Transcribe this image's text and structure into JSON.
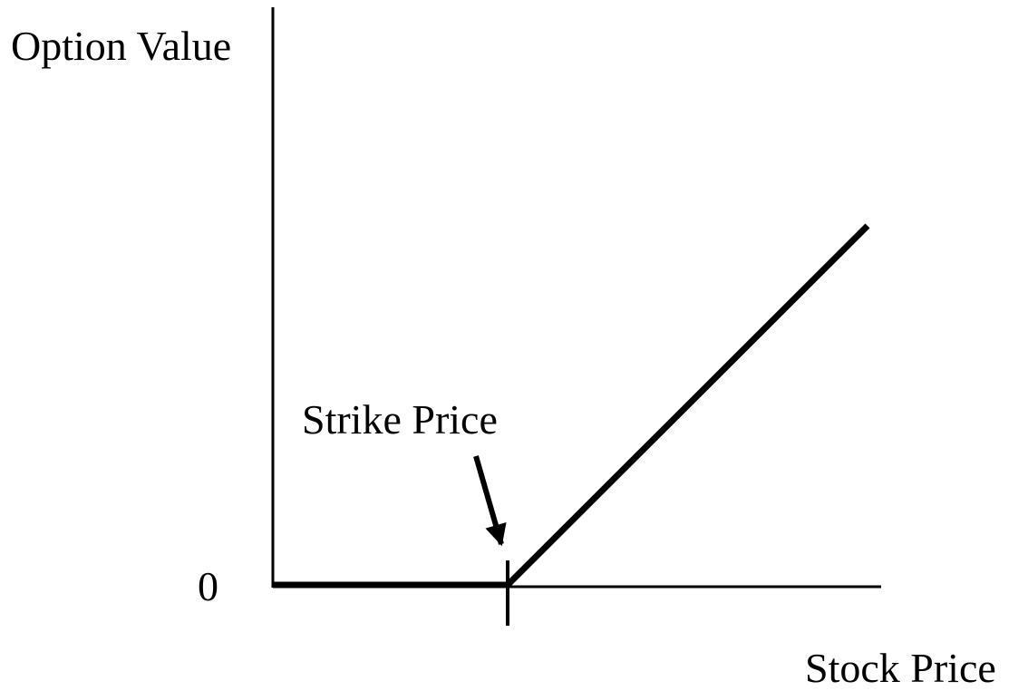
{
  "labels": {
    "y_axis": "Option Value",
    "x_axis": "Stock Price",
    "origin": "0",
    "strike": "Strike Price"
  }
}
